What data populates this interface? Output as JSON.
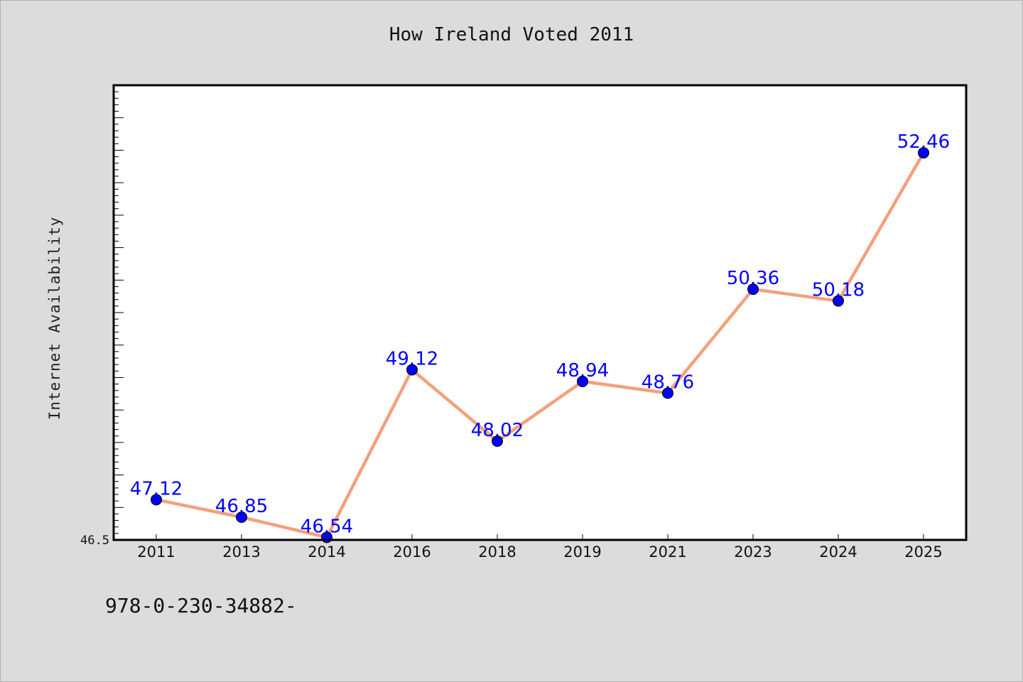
{
  "chart_data": {
    "type": "line",
    "title": "How Ireland Voted 2011",
    "xlabel": "",
    "ylabel": "Internet Availability",
    "categories": [
      "2011",
      "2013",
      "2014",
      "2016",
      "2018",
      "2019",
      "2021",
      "2023",
      "2024",
      "2025"
    ],
    "series": [
      {
        "values": [
          47.12,
          46.85,
          46.54,
          49.12,
          48.02,
          48.94,
          48.76,
          50.36,
          50.18,
          52.46
        ]
      }
    ],
    "ylim": [
      46.5,
      53.5
    ],
    "y_tick_label": "46.5",
    "grid": false,
    "line_color": "#f4a07c",
    "marker_color": "#0000ff",
    "label_color": "#0000ff"
  },
  "footer": {
    "text": "978-0-230-34882-"
  }
}
